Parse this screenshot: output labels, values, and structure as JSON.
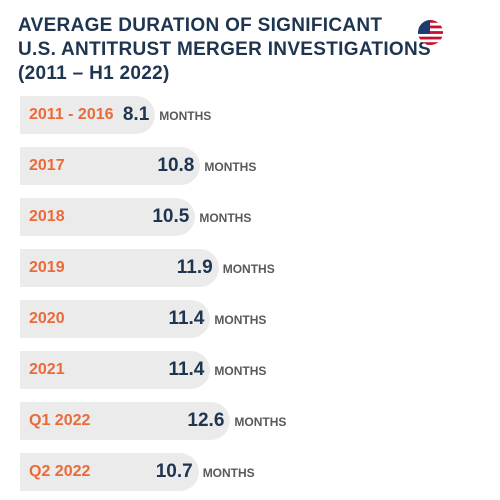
{
  "title": {
    "line1": "AVERAGE DURATION OF SIGNIFICANT",
    "line2": "U.S. ANTITRUST MERGER INVESTIGATIONS",
    "line3": "(2011 – H1 2022)"
  },
  "flag": {
    "icon": "us-flag-icon",
    "colors": {
      "red": "#c8102e",
      "blue": "#1f3a6e",
      "white": "#ffffff"
    }
  },
  "colors": {
    "label": "#ea6a3a",
    "value": "#1e3550",
    "bar": "#ebebeb",
    "unit": "#595959"
  },
  "chart_data": {
    "type": "bar",
    "orientation": "horizontal",
    "categories": [
      "2011 - 2016",
      "2017",
      "2018",
      "2019",
      "2020",
      "2021",
      "Q1 2022",
      "Q2 2022"
    ],
    "values": [
      8.1,
      10.8,
      10.5,
      11.9,
      11.4,
      11.4,
      12.6,
      10.7
    ],
    "value_labels": [
      "8.1",
      "10.8",
      "10.5",
      "11.9",
      "11.4",
      "11.4",
      "12.6",
      "10.7"
    ],
    "unit": "MONTHS",
    "title": "AVERAGE DURATION OF SIGNIFICANT U.S. ANTITRUST MERGER INVESTIGATIONS (2011 – H1 2022)",
    "xlim": [
      0,
      13.5
    ]
  }
}
